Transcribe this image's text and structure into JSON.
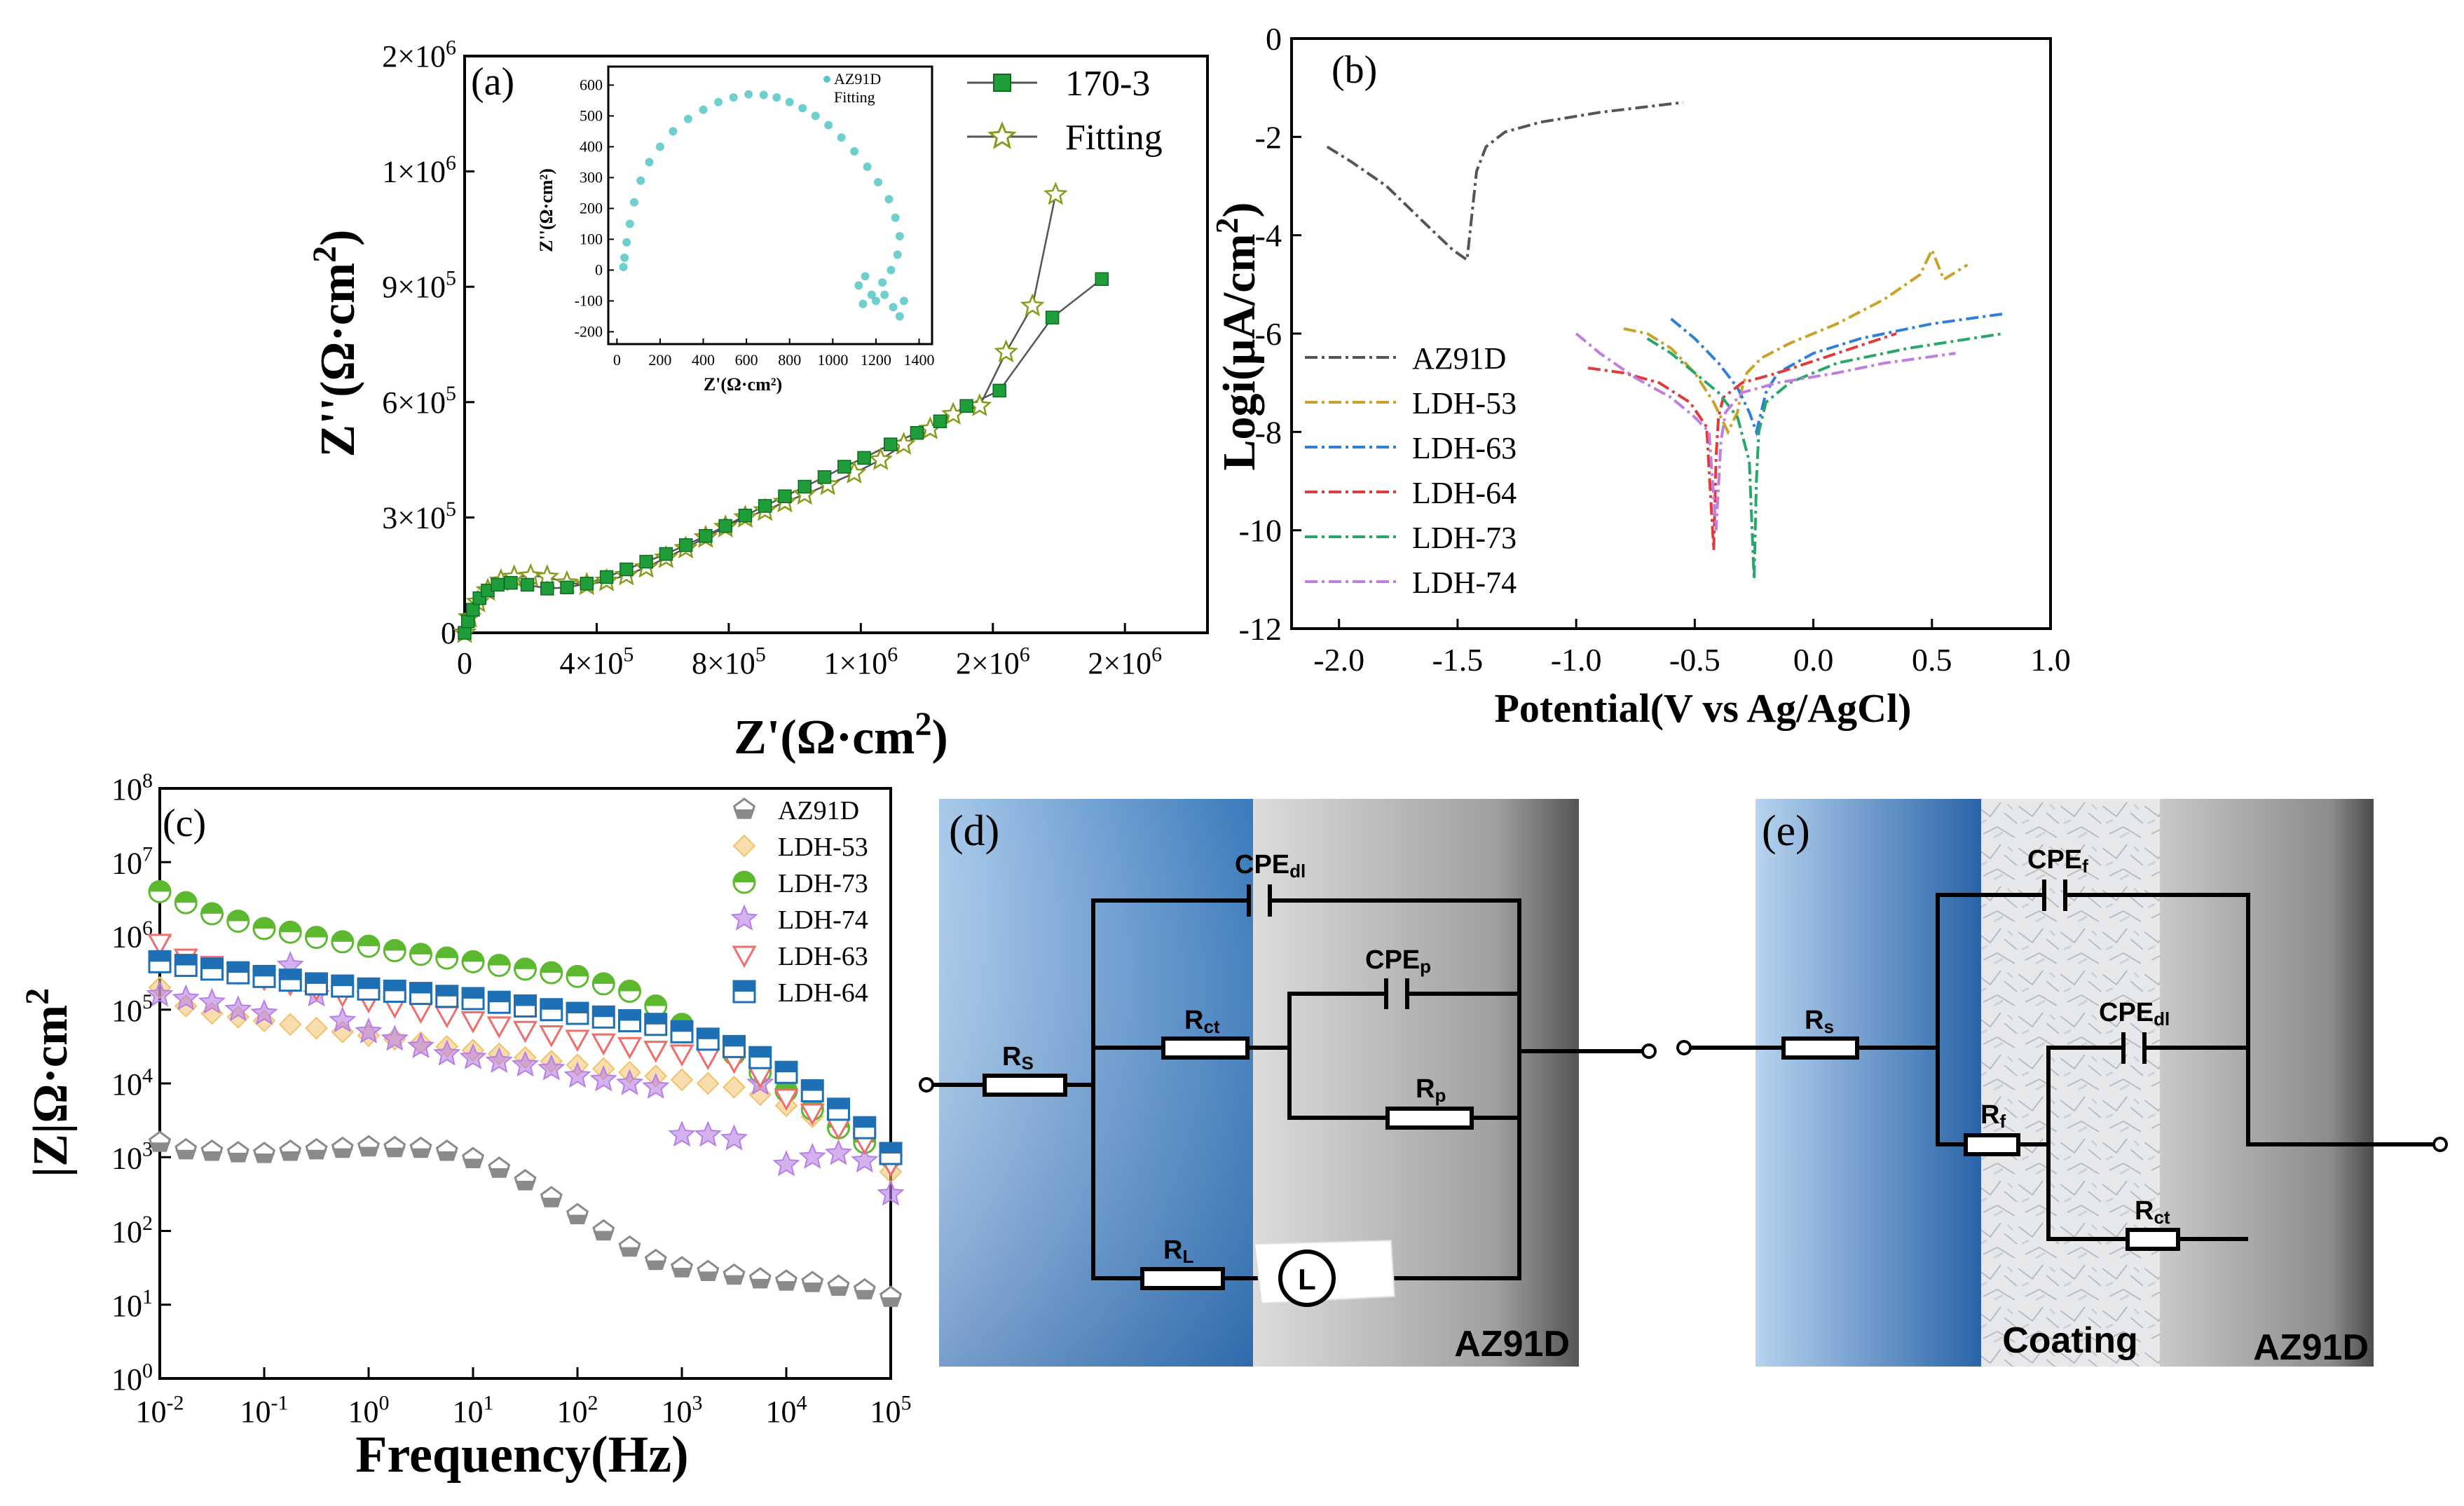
{
  "panel_a": {
    "label": "(a)",
    "title": "",
    "type": "line",
    "xlabel_pre": "Z'(Ω·cm",
    "xlabel_sup": "2",
    "xlabel_post": ")",
    "ylabel_pre": "Z''(Ω·cm",
    "ylabel_sup": "2",
    "ylabel_post": ")",
    "xticks": [
      {
        "v": 0,
        "m": "0",
        "e": ""
      },
      {
        "v": 400000,
        "m": "4×10",
        "e": "5"
      },
      {
        "v": 800000,
        "m": "8×10",
        "e": "5"
      },
      {
        "v": 1200000,
        "m": "1×10",
        "e": "6"
      },
      {
        "v": 1600000,
        "m": "2×10",
        "e": "6"
      },
      {
        "v": 2000000,
        "m": "2×10",
        "e": "6"
      }
    ],
    "yticks": [
      {
        "v": 0,
        "m": "0",
        "e": ""
      },
      {
        "v": 300000,
        "m": "3×10",
        "e": "5"
      },
      {
        "v": 600000,
        "m": "6×10",
        "e": "5"
      },
      {
        "v": 900000,
        "m": "9×10",
        "e": "5"
      },
      {
        "v": 1200000,
        "m": "1×10",
        "e": "6"
      },
      {
        "v": 1500000,
        "m": "2×10",
        "e": "6"
      }
    ],
    "xlim": [
      0,
      2250000
    ],
    "ylim": [
      0,
      1500000
    ],
    "legend": [
      "170-3",
      "Fitting"
    ],
    "colors": {
      "data": "#1f9d3a",
      "fit": "#8a9a1a"
    },
    "chart_data": {
      "type": "line",
      "series": [
        {
          "name": "170-3",
          "x": [
            0,
            10000,
            25000,
            45000,
            70000,
            100000,
            140000,
            190000,
            250000,
            310000,
            370000,
            430000,
            490000,
            550000,
            610000,
            670000,
            730000,
            790000,
            850000,
            910000,
            970000,
            1030000,
            1090000,
            1150000,
            1210000,
            1290000,
            1370000,
            1440000,
            1520000,
            1620000,
            1780000,
            1930000
          ],
          "y": [
            0,
            30000,
            60000,
            90000,
            110000,
            125000,
            130000,
            125000,
            115000,
            118000,
            128000,
            145000,
            165000,
            185000,
            205000,
            228000,
            252000,
            278000,
            305000,
            330000,
            355000,
            380000,
            405000,
            432000,
            455000,
            490000,
            520000,
            550000,
            590000,
            630000,
            820000,
            920000
          ]
        },
        {
          "name": "Fitting",
          "x": [
            0,
            15000,
            40000,
            70000,
            110000,
            150000,
            200000,
            250000,
            310000,
            370000,
            430000,
            490000,
            550000,
            610000,
            670000,
            730000,
            790000,
            850000,
            910000,
            970000,
            1030000,
            1100000,
            1180000,
            1260000,
            1330000,
            1410000,
            1480000,
            1560000,
            1640000,
            1720000,
            1790000
          ],
          "y": [
            0,
            40000,
            80000,
            110000,
            135000,
            145000,
            148000,
            145000,
            130000,
            125000,
            135000,
            150000,
            170000,
            195000,
            220000,
            248000,
            275000,
            300000,
            318000,
            340000,
            360000,
            385000,
            415000,
            450000,
            490000,
            530000,
            568000,
            590000,
            730000,
            850000,
            1140000
          ]
        }
      ]
    },
    "inset": {
      "xlabel": "Z'(Ω·cm²)",
      "ylabel": "Z''(Ω·cm²)",
      "xticks": [
        "0",
        "200",
        "400",
        "600",
        "800",
        "1000",
        "1200",
        "1400"
      ],
      "yticks": [
        "-200",
        "-100",
        "0",
        "100",
        "200",
        "300",
        "400",
        "500",
        "600"
      ],
      "legend": [
        "AZ91D",
        "Fitting"
      ],
      "color": "#56c7c7",
      "chart_data": {
        "type": "scatter",
        "x": [
          30,
          35,
          45,
          60,
          80,
          110,
          150,
          200,
          260,
          330,
          400,
          470,
          540,
          610,
          680,
          740,
          800,
          860,
          920,
          980,
          1040,
          1100,
          1160,
          1210,
          1260,
          1290,
          1310,
          1300,
          1270,
          1230,
          1180,
          1140,
          1120,
          1150,
          1200,
          1240,
          1280,
          1310,
          1330
        ],
        "y": [
          10,
          40,
          90,
          150,
          220,
          290,
          350,
          400,
          450,
          490,
          520,
          545,
          560,
          570,
          568,
          560,
          545,
          525,
          500,
          470,
          430,
          385,
          335,
          285,
          230,
          170,
          110,
          50,
          0,
          -40,
          -80,
          -110,
          -50,
          -20,
          -100,
          -80,
          -120,
          -150,
          -100
        ]
      }
    }
  },
  "panel_b": {
    "label": "(b)",
    "type": "line",
    "xlabel": "Potential(V vs Ag/AgCl)",
    "ylabel_pre": "Logi(μA/cm",
    "ylabel_sup": "2",
    "ylabel_post": ")",
    "xticks": [
      "-2.0",
      "-1.5",
      "-1.0",
      "-0.5",
      "0.0",
      "0.5",
      "1.0"
    ],
    "yticks": [
      "0",
      "-2",
      "-4",
      "-6",
      "-8",
      "-10",
      "-12"
    ],
    "xlim": [
      -2.2,
      1.0
    ],
    "ylim": [
      -12,
      0
    ],
    "chart_data": {
      "type": "line",
      "series": [
        {
          "name": "AZ91D",
          "color": "#555555",
          "x": [
            -2.05,
            -1.95,
            -1.8,
            -1.65,
            -1.52,
            -1.46,
            -1.44,
            -1.42,
            -1.38,
            -1.3,
            -1.15,
            -0.9,
            -0.55
          ],
          "y": [
            -2.2,
            -2.5,
            -3.0,
            -3.7,
            -4.3,
            -4.5,
            -3.6,
            -2.7,
            -2.2,
            -1.9,
            -1.7,
            -1.5,
            -1.3
          ]
        },
        {
          "name": "LDH-53",
          "color": "#c9a227",
          "x": [
            -0.8,
            -0.7,
            -0.6,
            -0.5,
            -0.42,
            -0.36,
            -0.32,
            -0.3,
            -0.28,
            -0.22,
            -0.1,
            0.1,
            0.3,
            0.45,
            0.5,
            0.55,
            0.65
          ],
          "y": [
            -5.9,
            -6.0,
            -6.3,
            -6.8,
            -7.4,
            -8.0,
            -7.6,
            -7.1,
            -6.8,
            -6.5,
            -6.2,
            -5.8,
            -5.3,
            -4.8,
            -4.3,
            -4.9,
            -4.6
          ]
        },
        {
          "name": "LDH-63",
          "color": "#2f7fd9",
          "x": [
            -0.6,
            -0.5,
            -0.4,
            -0.32,
            -0.27,
            -0.24,
            -0.22,
            -0.2,
            -0.15,
            0.0,
            0.2,
            0.5,
            0.8
          ],
          "y": [
            -5.7,
            -6.1,
            -6.6,
            -7.1,
            -7.6,
            -8.0,
            -7.6,
            -7.2,
            -6.8,
            -6.4,
            -6.1,
            -5.8,
            -5.6
          ]
        },
        {
          "name": "LDH-64",
          "color": "#e03a3a",
          "x": [
            -0.95,
            -0.8,
            -0.65,
            -0.52,
            -0.45,
            -0.42,
            -0.41,
            -0.4,
            -0.38,
            -0.3,
            -0.15,
            0.1,
            0.35
          ],
          "y": [
            -6.7,
            -6.8,
            -7.0,
            -7.4,
            -7.9,
            -10.4,
            -8.5,
            -7.7,
            -7.3,
            -7.0,
            -6.8,
            -6.4,
            -6.0
          ]
        },
        {
          "name": "LDH-73",
          "color": "#2aa66a",
          "x": [
            -0.7,
            -0.6,
            -0.5,
            -0.4,
            -0.32,
            -0.27,
            -0.25,
            -0.24,
            -0.23,
            -0.2,
            -0.1,
            0.1,
            0.4,
            0.8
          ],
          "y": [
            -6.1,
            -6.4,
            -6.8,
            -7.2,
            -7.7,
            -8.6,
            -11.0,
            -9.0,
            -8.0,
            -7.4,
            -7.0,
            -6.6,
            -6.3,
            -6.0
          ]
        },
        {
          "name": "LDH-74",
          "color": "#c07fe0",
          "x": [
            -1.0,
            -0.9,
            -0.75,
            -0.6,
            -0.5,
            -0.44,
            -0.41,
            -0.39,
            -0.37,
            -0.3,
            -0.15,
            0.1,
            0.3,
            0.6
          ],
          "y": [
            -6.0,
            -6.4,
            -6.9,
            -7.3,
            -7.7,
            -8.0,
            -10.0,
            -8.2,
            -7.6,
            -7.2,
            -7.0,
            -6.8,
            -6.6,
            -6.4
          ]
        }
      ]
    }
  },
  "panel_c": {
    "label": "(c)",
    "type": "scatter",
    "xlabel": "Frequency(Hz)",
    "ylabel_pre": "|Z|Ω·cm",
    "ylabel_sup": "2",
    "xticks": [
      {
        "m": "10",
        "e": "-2"
      },
      {
        "m": "10",
        "e": "-1"
      },
      {
        "m": "10",
        "e": "0"
      },
      {
        "m": "10",
        "e": "1"
      },
      {
        "m": "10",
        "e": "2"
      },
      {
        "m": "10",
        "e": "3"
      },
      {
        "m": "10",
        "e": "4"
      },
      {
        "m": "10",
        "e": "5"
      }
    ],
    "yticks": [
      {
        "m": "10",
        "e": "0"
      },
      {
        "m": "10",
        "e": "1"
      },
      {
        "m": "10",
        "e": "2"
      },
      {
        "m": "10",
        "e": "3"
      },
      {
        "m": "10",
        "e": "4"
      },
      {
        "m": "10",
        "e": "5"
      },
      {
        "m": "10",
        "e": "6"
      },
      {
        "m": "10",
        "e": "7"
      },
      {
        "m": "10",
        "e": "8"
      }
    ],
    "xlim_log10": [
      -2,
      5
    ],
    "ylim_log10": [
      0,
      8
    ],
    "chart_data": {
      "type": "scatter",
      "x_log10": [
        -2,
        -1.75,
        -1.5,
        -1.25,
        -1,
        -0.75,
        -0.5,
        -0.25,
        0,
        0.25,
        0.5,
        0.75,
        1,
        1.25,
        1.5,
        1.75,
        2,
        2.25,
        2.5,
        2.75,
        3,
        3.25,
        3.5,
        3.75,
        4,
        4.25,
        4.5,
        4.75,
        5
      ],
      "series": [
        {
          "name": "AZ91D",
          "marker": "pentagon",
          "color": "#8a8a8a",
          "log10_values": [
            3.2,
            3.1,
            3.08,
            3.06,
            3.05,
            3.08,
            3.1,
            3.12,
            3.14,
            3.13,
            3.12,
            3.08,
            2.98,
            2.85,
            2.68,
            2.45,
            2.22,
            2.0,
            1.78,
            1.6,
            1.5,
            1.45,
            1.4,
            1.35,
            1.32,
            1.3,
            1.25,
            1.2,
            1.1
          ]
        },
        {
          "name": "LDH-53",
          "marker": "diamond",
          "color": "#f2c26b",
          "log10_values": [
            5.3,
            5.05,
            4.95,
            4.9,
            4.85,
            4.8,
            4.75,
            4.7,
            4.65,
            4.6,
            4.55,
            4.5,
            4.45,
            4.4,
            4.35,
            4.3,
            4.25,
            4.2,
            4.15,
            4.1,
            4.05,
            4.0,
            3.95,
            3.85,
            3.7,
            3.55,
            3.4,
            3.25,
            2.8
          ]
        },
        {
          "name": "LDH-73",
          "marker": "circle",
          "color": "#5cb82e",
          "log10_values": [
            6.6,
            6.45,
            6.3,
            6.2,
            6.1,
            6.05,
            5.98,
            5.92,
            5.86,
            5.8,
            5.75,
            5.7,
            5.65,
            5.6,
            5.55,
            5.5,
            5.45,
            5.35,
            5.25,
            5.05,
            4.8,
            4.6,
            4.4,
            4.15,
            3.9,
            3.65,
            3.4,
            3.2,
            3.0
          ]
        },
        {
          "name": "LDH-74",
          "marker": "star",
          "color": "#b77fe6",
          "log10_values": [
            5.2,
            5.15,
            5.1,
            5.0,
            4.95,
            5.6,
            5.2,
            4.85,
            4.7,
            4.6,
            4.5,
            4.4,
            4.35,
            4.3,
            4.25,
            4.2,
            4.1,
            4.05,
            4.0,
            3.95,
            3.3,
            3.3,
            3.25,
            4.0,
            2.9,
            3.0,
            3.05,
            2.95,
            2.5
          ]
        },
        {
          "name": "LDH-63",
          "marker": "triangle-down",
          "color": "#ee6d6d",
          "log10_values": [
            5.9,
            5.7,
            5.6,
            5.5,
            5.42,
            5.35,
            5.28,
            5.2,
            5.12,
            5.05,
            4.98,
            4.92,
            4.85,
            4.78,
            4.72,
            4.66,
            4.6,
            4.55,
            4.5,
            4.45,
            4.4,
            4.35,
            4.3,
            4.1,
            3.8,
            3.6,
            3.4,
            3.2,
            2.9
          ]
        },
        {
          "name": "LDH-64",
          "marker": "square-half",
          "color": "#1f6fb5",
          "log10_values": [
            5.65,
            5.6,
            5.55,
            5.5,
            5.45,
            5.4,
            5.35,
            5.32,
            5.28,
            5.25,
            5.22,
            5.18,
            5.15,
            5.1,
            5.05,
            5.0,
            4.95,
            4.9,
            4.85,
            4.8,
            4.7,
            4.6,
            4.5,
            4.35,
            4.15,
            3.9,
            3.65,
            3.4,
            3.05
          ]
        }
      ]
    }
  },
  "panel_d": {
    "label": "(d)",
    "components": {
      "cpe_dl": "CPE",
      "cpe_dl_sub": "dl",
      "cpe_p": "CPE",
      "cpe_p_sub": "p",
      "rs": "R",
      "rs_sub": "S",
      "rct": "R",
      "rct_sub": "ct",
      "rp": "R",
      "rp_sub": "p",
      "rl": "R",
      "rl_sub": "L",
      "l": "L"
    },
    "substrate": "AZ91D"
  },
  "panel_e": {
    "label": "(e)",
    "components": {
      "cpe_f": "CPE",
      "cpe_f_sub": "f",
      "cpe_dl": "CPE",
      "cpe_dl_sub": "dl",
      "rs": "R",
      "rs_sub": "s",
      "rf": "R",
      "rf_sub": "f",
      "rct": "R",
      "rct_sub": "ct"
    },
    "coating": "Coating",
    "substrate": "AZ91D"
  }
}
